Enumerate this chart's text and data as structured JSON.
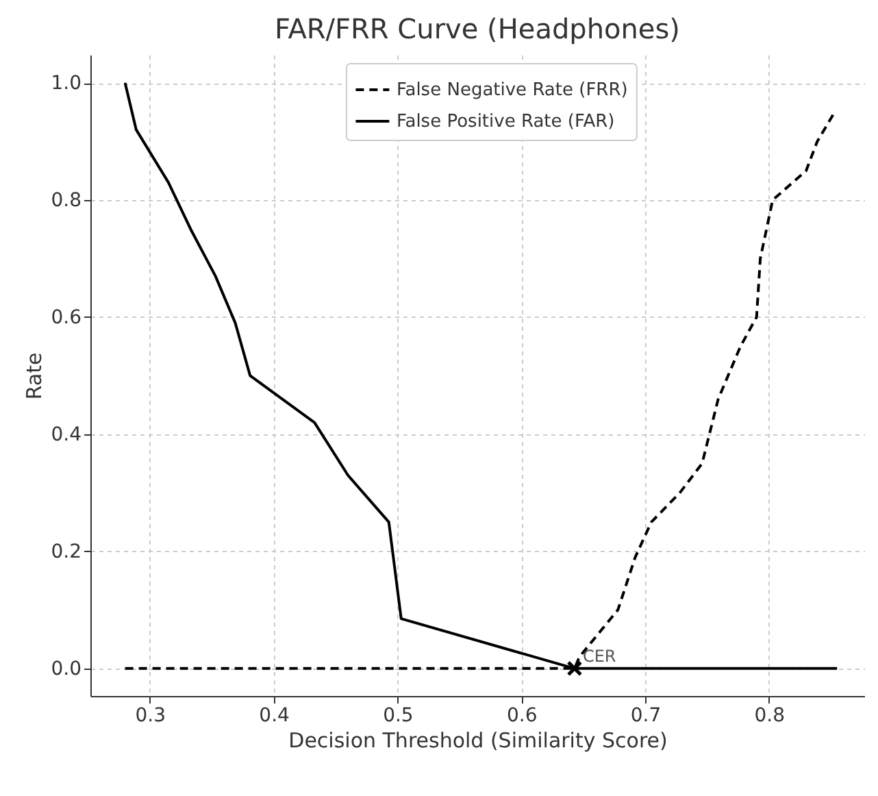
{
  "chart_data": {
    "type": "line",
    "title": "FAR/FRR Curve (Headphones)",
    "xlabel": "Decision Threshold (Similarity Score)",
    "ylabel": "Rate",
    "xlim": [
      0.252,
      0.877
    ],
    "ylim": [
      -0.047,
      1.048
    ],
    "xticks": [
      0.3,
      0.4,
      0.5,
      0.6,
      0.7,
      0.8
    ],
    "yticks": [
      {
        "value": 0,
        "label": "0.0"
      },
      0.2,
      0.4,
      0.6,
      0.8,
      {
        "value": 1,
        "label": "1.0"
      }
    ],
    "grid": true,
    "legend": "top",
    "annotations": [
      {
        "text": "CER",
        "x": 0.643,
        "y": 0
      }
    ],
    "series": [
      {
        "name": "False Negative Rate (FRR)",
        "color": "#000000",
        "line_style": "dashed",
        "x": [
          0.28,
          0.643,
          0.647,
          0.678,
          0.692,
          0.705,
          0.728,
          0.746,
          0.759,
          0.777,
          0.79,
          0.793,
          0.803,
          0.83,
          0.839,
          0.853
        ],
        "values": [
          0,
          0,
          0.02,
          0.1,
          0.19,
          0.25,
          0.3,
          0.35,
          0.46,
          0.55,
          0.6,
          0.7,
          0.8,
          0.85,
          0.9,
          0.95
        ]
      },
      {
        "name": "False Positive Rate (FAR)",
        "color": "#000000",
        "line_style": "solid",
        "x": [
          0.28,
          0.289,
          0.315,
          0.333,
          0.353,
          0.369,
          0.381,
          0.433,
          0.46,
          0.493,
          0.503,
          0.643,
          0.855
        ],
        "values": [
          1,
          0.92,
          0.83,
          0.75,
          0.67,
          0.59,
          0.5,
          0.42,
          0.33,
          0.25,
          0.085,
          0,
          0
        ]
      },
      {
        "type": "scatter",
        "marker": "cross",
        "color": "#000000",
        "x": [
          0.643
        ],
        "values": [
          0
        ]
      }
    ]
  }
}
